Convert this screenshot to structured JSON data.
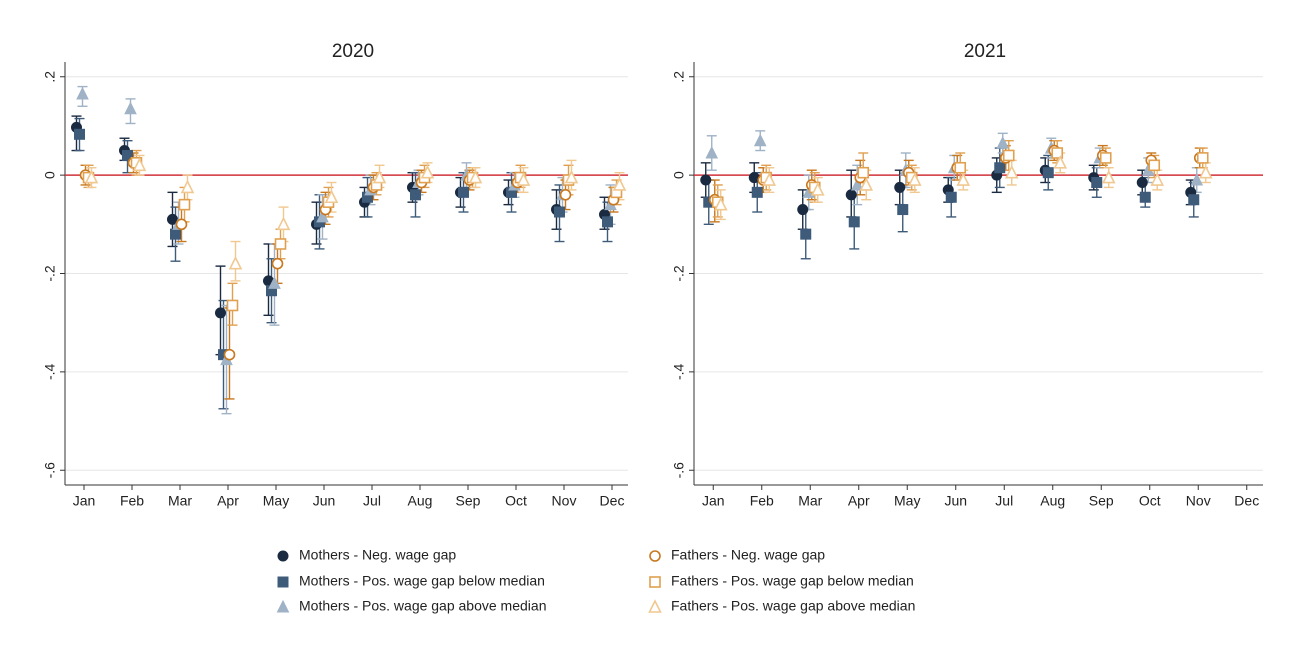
{
  "chart_data": [
    {
      "type": "scatter",
      "title": "2020",
      "categories": [
        "Jan",
        "Feb",
        "Mar",
        "Apr",
        "May",
        "Jun",
        "Jul",
        "Aug",
        "Sep",
        "Oct",
        "Nov",
        "Dec"
      ],
      "ylim": [
        -0.63,
        0.23
      ],
      "yticks": [
        {
          "value": 0.2,
          "label": ".2"
        },
        0,
        {
          "value": -0.2,
          "label": "-.2"
        },
        {
          "value": -0.4,
          "label": "-.4"
        },
        {
          "value": -0.6,
          "label": "-.6"
        }
      ],
      "grid": true,
      "reference_line": {
        "value": 0,
        "color": "#d0303a"
      },
      "series": [
        {
          "name": "Mothers - Neg. wage gap",
          "color": "#1a2a40",
          "marker": "circle",
          "filled": true,
          "values": [
            0.097,
            0.05,
            -0.09,
            -0.28,
            -0.215,
            -0.1,
            -0.055,
            -0.025,
            -0.035,
            -0.035,
            -0.07,
            -0.08
          ],
          "ci_low": [
            0.05,
            0.03,
            -0.145,
            -0.365,
            -0.285,
            -0.14,
            -0.085,
            -0.055,
            -0.065,
            -0.06,
            -0.11,
            -0.11
          ],
          "ci_high": [
            0.12,
            0.075,
            -0.035,
            -0.185,
            -0.14,
            -0.055,
            -0.025,
            0.005,
            -0.005,
            -0.01,
            -0.03,
            -0.045
          ]
        },
        {
          "name": "Mothers - Pos. wage gap below median",
          "color": "#3f5b7a",
          "marker": "square",
          "filled": true,
          "values": [
            0.083,
            0.04,
            -0.12,
            -0.365,
            -0.235,
            -0.095,
            -0.045,
            -0.04,
            -0.035,
            -0.035,
            -0.075,
            -0.095
          ],
          "ci_low": [
            0.05,
            0.005,
            -0.175,
            -0.475,
            -0.3,
            -0.15,
            -0.085,
            -0.085,
            -0.075,
            -0.075,
            -0.135,
            -0.135
          ],
          "ci_high": [
            0.115,
            0.07,
            -0.065,
            -0.255,
            -0.17,
            -0.04,
            -0.005,
            0.005,
            0.005,
            0.005,
            -0.02,
            -0.055
          ]
        },
        {
          "name": "Mothers - Pos. wage gap above median",
          "color": "#9fb2c6",
          "marker": "triangle",
          "filled": true,
          "values": [
            0.165,
            0.135,
            -0.1,
            -0.375,
            -0.22,
            -0.085,
            -0.03,
            -0.015,
            0.0,
            -0.02,
            -0.04,
            -0.06
          ],
          "ci_low": [
            0.14,
            0.105,
            -0.14,
            -0.485,
            -0.305,
            -0.13,
            -0.06,
            -0.04,
            -0.025,
            -0.045,
            -0.075,
            -0.1
          ],
          "ci_high": [
            0.18,
            0.155,
            -0.055,
            -0.265,
            -0.14,
            -0.04,
            0,
            0.01,
            0.025,
            0.005,
            -0.005,
            -0.02
          ]
        },
        {
          "name": "Fathers - Neg. wage gap",
          "color": "#c8781e",
          "marker": "circle",
          "filled": false,
          "values": [
            0,
            0.025,
            -0.1,
            -0.365,
            -0.18,
            -0.07,
            -0.025,
            -0.015,
            -0.01,
            -0.015,
            -0.04,
            -0.05
          ],
          "ci_low": [
            -0.02,
            0.005,
            -0.135,
            -0.455,
            -0.22,
            -0.1,
            -0.05,
            -0.035,
            -0.03,
            -0.035,
            -0.07,
            -0.075
          ],
          "ci_high": [
            0.02,
            0.045,
            -0.065,
            -0.27,
            -0.14,
            -0.035,
            0,
            0.01,
            0.01,
            0.005,
            -0.01,
            -0.025
          ]
        },
        {
          "name": "Fathers - Pos. wage gap below median",
          "color": "#e0a050",
          "marker": "square",
          "filled": false,
          "values": [
            -0.005,
            0.025,
            -0.06,
            -0.265,
            -0.14,
            -0.055,
            -0.02,
            -0.005,
            -0.005,
            -0.005,
            -0.01,
            -0.035
          ],
          "ci_low": [
            -0.025,
            0,
            -0.095,
            -0.305,
            -0.17,
            -0.085,
            -0.04,
            -0.025,
            -0.025,
            -0.025,
            -0.04,
            -0.06
          ],
          "ci_high": [
            0.02,
            0.05,
            -0.025,
            -0.22,
            -0.11,
            -0.025,
            0.005,
            0.02,
            0.015,
            0.02,
            0.02,
            -0.01
          ]
        },
        {
          "name": "Fathers - Pos. wage gap above median",
          "color": "#f0c890",
          "marker": "triangle",
          "filled": false,
          "values": [
            -0.005,
            0.02,
            -0.025,
            -0.18,
            -0.1,
            -0.045,
            -0.005,
            0.005,
            -0.005,
            -0.01,
            -0.005,
            -0.02
          ],
          "ci_low": [
            -0.025,
            0,
            -0.05,
            -0.215,
            -0.135,
            -0.075,
            -0.025,
            -0.015,
            -0.025,
            -0.035,
            -0.03,
            -0.05
          ],
          "ci_high": [
            0.015,
            0.04,
            0,
            -0.135,
            -0.065,
            -0.015,
            0.02,
            0.025,
            0.015,
            0.015,
            0.03,
            0.005
          ]
        }
      ]
    },
    {
      "type": "scatter",
      "title": "2021",
      "categories": [
        "Jan",
        "Feb",
        "Mar",
        "Apr",
        "May",
        "Jun",
        "Jul",
        "Aug",
        "Sep",
        "Oct",
        "Nov",
        "Dec"
      ],
      "ylim": [
        -0.63,
        0.23
      ],
      "yticks": [
        {
          "value": 0.2,
          "label": ".2"
        },
        0,
        {
          "value": -0.2,
          "label": "-.2"
        },
        {
          "value": -0.4,
          "label": "-.4"
        },
        {
          "value": -0.6,
          "label": "-.6"
        }
      ],
      "grid": true,
      "reference_line": {
        "value": 0,
        "color": "#d0303a"
      },
      "series": [
        {
          "color": "#1a2a40",
          "marker": "circle",
          "filled": true,
          "values": [
            -0.01,
            -0.005,
            -0.07,
            -0.04,
            -0.025,
            -0.03,
            0,
            0.01,
            -0.005,
            -0.015,
            -0.035,
            null
          ],
          "ci_low": [
            -0.045,
            -0.035,
            -0.11,
            -0.085,
            -0.06,
            -0.055,
            -0.035,
            -0.015,
            -0.03,
            -0.04,
            -0.06,
            null
          ],
          "ci_high": [
            0.025,
            0.025,
            -0.03,
            0.01,
            0.01,
            -0.005,
            0.035,
            0.035,
            0.02,
            0.01,
            -0.01,
            null
          ]
        },
        {
          "color": "#3f5b7a",
          "marker": "square",
          "filled": true,
          "values": [
            -0.055,
            -0.035,
            -0.12,
            -0.095,
            -0.07,
            -0.045,
            0.015,
            0.005,
            -0.015,
            -0.045,
            -0.05,
            null
          ],
          "ci_low": [
            -0.1,
            -0.075,
            -0.17,
            -0.15,
            -0.115,
            -0.085,
            -0.025,
            -0.03,
            -0.045,
            -0.065,
            -0.085,
            null
          ],
          "ci_high": [
            -0.01,
            0.005,
            -0.07,
            -0.04,
            -0.025,
            -0.005,
            0.055,
            0.04,
            0.015,
            -0.005,
            -0.015,
            null
          ]
        },
        {
          "color": "#9fb2c6",
          "marker": "triangle",
          "filled": true,
          "values": [
            0.045,
            0.07,
            -0.035,
            -0.02,
            0.01,
            0.015,
            0.065,
            0.055,
            0.035,
            0.01,
            -0.01,
            null
          ],
          "ci_low": [
            0.01,
            0.05,
            -0.07,
            -0.06,
            -0.025,
            -0.01,
            0.045,
            0.035,
            0.015,
            -0.015,
            -0.035,
            null
          ],
          "ci_high": [
            0.08,
            0.09,
            0,
            0.02,
            0.045,
            0.04,
            0.085,
            0.075,
            0.055,
            0.035,
            0.015,
            null
          ]
        },
        {
          "color": "#c8781e",
          "marker": "circle",
          "filled": false,
          "values": [
            -0.05,
            -0.01,
            -0.02,
            -0.005,
            0.005,
            0.015,
            0.035,
            0.05,
            0.04,
            0.03,
            0.035,
            null
          ],
          "ci_low": [
            -0.095,
            -0.035,
            -0.05,
            -0.04,
            -0.02,
            -0.01,
            0.01,
            0.03,
            0.02,
            0.015,
            0.015,
            null
          ],
          "ci_high": [
            -0.01,
            0.015,
            0.01,
            0.03,
            0.03,
            0.04,
            0.06,
            0.07,
            0.06,
            0.045,
            0.055,
            null
          ]
        },
        {
          "color": "#e0a050",
          "marker": "square",
          "filled": false,
          "values": [
            -0.055,
            -0.005,
            -0.025,
            0.005,
            -0.005,
            0.015,
            0.04,
            0.045,
            0.035,
            0.02,
            0.035,
            null
          ],
          "ci_low": [
            -0.085,
            -0.03,
            -0.055,
            -0.03,
            -0.03,
            -0.01,
            0.01,
            0.025,
            0.015,
            -0.005,
            0.015,
            null
          ],
          "ci_high": [
            -0.02,
            0.02,
            0.005,
            0.045,
            0.02,
            0.045,
            0.07,
            0.07,
            0.055,
            0.04,
            0.055,
            null
          ]
        },
        {
          "color": "#f0c890",
          "marker": "triangle",
          "filled": false,
          "values": [
            -0.06,
            -0.01,
            -0.03,
            -0.02,
            -0.01,
            -0.01,
            0.005,
            0.025,
            -0.005,
            -0.01,
            0.005,
            null
          ],
          "ci_low": [
            -0.09,
            -0.035,
            -0.055,
            -0.05,
            -0.035,
            -0.03,
            -0.02,
            0.005,
            -0.025,
            -0.03,
            -0.015,
            null
          ],
          "ci_high": [
            -0.03,
            0.015,
            -0.005,
            0.01,
            0.015,
            0.01,
            0.03,
            0.045,
            0.015,
            0.01,
            0.025,
            null
          ]
        }
      ]
    }
  ]
}
